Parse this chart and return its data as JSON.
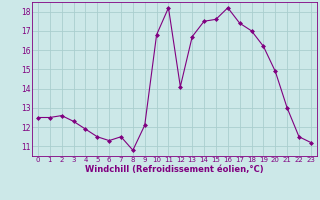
{
  "x": [
    0,
    1,
    2,
    3,
    4,
    5,
    6,
    7,
    8,
    9,
    10,
    11,
    12,
    13,
    14,
    15,
    16,
    17,
    18,
    19,
    20,
    21,
    22,
    23
  ],
  "y": [
    12.5,
    12.5,
    12.6,
    12.3,
    11.9,
    11.5,
    11.3,
    11.5,
    10.8,
    12.1,
    16.8,
    18.2,
    14.1,
    16.7,
    17.5,
    17.6,
    18.2,
    17.4,
    17.0,
    16.2,
    14.9,
    13.0,
    11.5,
    11.2
  ],
  "line_color": "#800080",
  "marker": "D",
  "marker_size": 2.0,
  "bg_color": "#cce8e8",
  "grid_color": "#aacece",
  "xlabel": "Windchill (Refroidissement éolien,°C)",
  "xlabel_color": "#800080",
  "tick_color": "#800080",
  "ylim": [
    10.5,
    18.5
  ],
  "xlim": [
    -0.5,
    23.5
  ],
  "yticks": [
    11,
    12,
    13,
    14,
    15,
    16,
    17,
    18
  ],
  "xticks": [
    0,
    1,
    2,
    3,
    4,
    5,
    6,
    7,
    8,
    9,
    10,
    11,
    12,
    13,
    14,
    15,
    16,
    17,
    18,
    19,
    20,
    21,
    22,
    23
  ],
  "tick_fontsize": 5.0,
  "xlabel_fontsize": 6.0,
  "ytick_fontsize": 5.5,
  "linewidth": 0.8
}
